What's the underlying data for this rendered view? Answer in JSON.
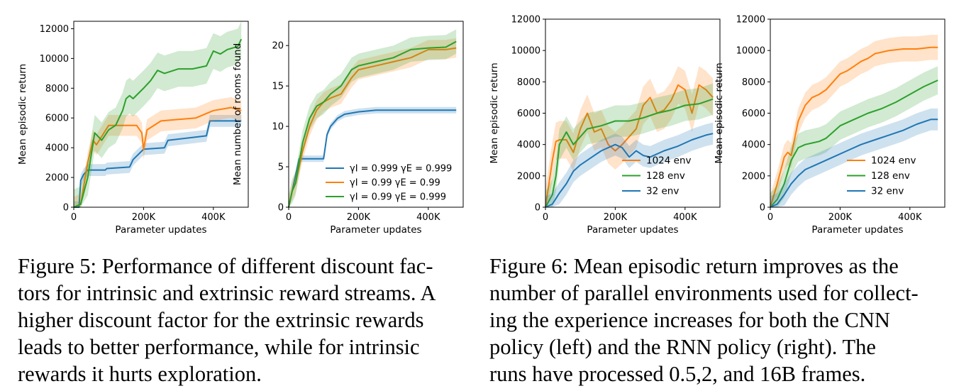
{
  "colors": {
    "blue": "#1f77b4",
    "orange": "#ff7f0e",
    "green": "#2ca02c"
  },
  "chart_data": [
    {
      "type": "line",
      "panel": "fig5-left",
      "xlabel": "Parameter updates",
      "ylabel": "Mean episodic return",
      "xlim": [
        0,
        500000
      ],
      "ylim": [
        0,
        12500
      ],
      "xticks": [
        0,
        200000,
        400000
      ],
      "xtick_labels": [
        "0",
        "200K",
        "400K"
      ],
      "yticks": [
        0,
        2000,
        4000,
        6000,
        8000,
        10000,
        12000
      ],
      "ytick_labels": [
        "0",
        "2000",
        "4000",
        "6000",
        "8000",
        "10000",
        "12000"
      ],
      "grid": false,
      "series": [
        {
          "color": "blue",
          "band": 400,
          "x": [
            0,
            15000,
            20000,
            28000,
            40000,
            90000,
            95000,
            160000,
            170000,
            200000,
            260000,
            270000,
            380000,
            390000,
            480000
          ],
          "y": [
            0,
            0,
            1800,
            2200,
            2500,
            2500,
            2600,
            2700,
            3200,
            3900,
            4000,
            4500,
            4800,
            5800,
            5800
          ]
        },
        {
          "color": "orange",
          "band": 700,
          "x": [
            0,
            20000,
            40000,
            55000,
            65000,
            100000,
            130000,
            180000,
            195000,
            200000,
            210000,
            250000,
            300000,
            350000,
            400000,
            450000,
            480000
          ],
          "y": [
            0,
            200,
            3000,
            4500,
            4200,
            5500,
            5500,
            5500,
            5000,
            3900,
            5200,
            5800,
            5900,
            6000,
            6500,
            6700,
            6500
          ]
        },
        {
          "color": "green",
          "band": 1200,
          "x": [
            0,
            20000,
            40000,
            50000,
            60000,
            80000,
            100000,
            120000,
            140000,
            150000,
            160000,
            170000,
            200000,
            220000,
            240000,
            260000,
            300000,
            340000,
            380000,
            400000,
            420000,
            440000,
            470000,
            480000
          ],
          "y": [
            0,
            200,
            2000,
            3500,
            5000,
            4500,
            5200,
            5500,
            6500,
            7300,
            7500,
            7300,
            8000,
            8500,
            9200,
            9000,
            9300,
            9300,
            9500,
            10500,
            10300,
            10600,
            10800,
            11300
          ]
        }
      ]
    },
    {
      "type": "line",
      "panel": "fig5-right",
      "xlabel": "Parameter updates",
      "ylabel": "Mean number of rooms found",
      "xlim": [
        0,
        500000
      ],
      "ylim": [
        0,
        23
      ],
      "xticks": [
        0,
        200000,
        400000
      ],
      "xtick_labels": [
        "0",
        "200K",
        "400K"
      ],
      "yticks": [
        0,
        5,
        10,
        15,
        20
      ],
      "ytick_labels": [
        "0",
        "5",
        "10",
        "15",
        "20"
      ],
      "grid": false,
      "legend": "lower-right",
      "series": [
        {
          "name": "γ_I = 0.999 γ_E = 0.999",
          "legend_label": "γI = 0.999 γE = 0.999",
          "color": "blue",
          "band": 0.4,
          "x": [
            0,
            10000,
            20000,
            30000,
            60000,
            100000,
            110000,
            120000,
            140000,
            160000,
            200000,
            250000,
            480000
          ],
          "y": [
            0,
            2,
            4,
            6,
            6,
            6,
            9,
            10,
            11,
            11.5,
            11.8,
            12,
            12
          ]
        },
        {
          "name": "γ_I = 0.99 γ_E = 0.99",
          "legend_label": "γI = 0.99 γE = 0.99",
          "color": "orange",
          "band": 1.2,
          "x": [
            0,
            10000,
            20000,
            40000,
            60000,
            80000,
            100000,
            120000,
            150000,
            180000,
            200000,
            250000,
            300000,
            350000,
            400000,
            450000,
            480000
          ],
          "y": [
            0,
            2,
            3,
            7,
            10,
            12,
            13,
            13.5,
            14,
            16,
            17,
            17.5,
            18,
            18.5,
            19.5,
            19.5,
            19.7
          ]
        },
        {
          "name": "γ_I = 0.99 γ_E = 0.999",
          "legend_label": "γI = 0.99 γE = 0.999",
          "color": "green",
          "band": 1.5,
          "x": [
            0,
            10000,
            20000,
            40000,
            60000,
            80000,
            100000,
            120000,
            150000,
            180000,
            200000,
            250000,
            300000,
            350000,
            400000,
            450000,
            480000
          ],
          "y": [
            0,
            2,
            3,
            8,
            11,
            12.5,
            13,
            14,
            15,
            17,
            17.5,
            18,
            18.5,
            19.5,
            19.7,
            19.8,
            20.5
          ]
        }
      ]
    },
    {
      "type": "line",
      "panel": "fig6-left",
      "xlabel": "Parameter updates",
      "ylabel": "Mean episodic return",
      "xlim": [
        0,
        500000
      ],
      "ylim": [
        0,
        12000
      ],
      "xticks": [
        0,
        200000,
        400000
      ],
      "xtick_labels": [
        "0",
        "200K",
        "400K"
      ],
      "yticks": [
        0,
        2000,
        4000,
        6000,
        8000,
        10000,
        12000
      ],
      "ytick_labels": [
        "0",
        "2000",
        "4000",
        "6000",
        "8000",
        "10000",
        "12000"
      ],
      "grid": false,
      "legend": "lower-right",
      "series": [
        {
          "name": "1024 env",
          "color": "orange",
          "band": 1200,
          "x": [
            0,
            10000,
            20000,
            30000,
            40000,
            60000,
            80000,
            100000,
            120000,
            140000,
            160000,
            180000,
            200000,
            220000,
            240000,
            260000,
            280000,
            300000,
            320000,
            340000,
            360000,
            380000,
            400000,
            420000,
            440000,
            460000,
            480000
          ],
          "y": [
            0,
            1500,
            3000,
            4200,
            4300,
            4300,
            3500,
            5000,
            6000,
            4800,
            5000,
            4000,
            3600,
            4000,
            4500,
            5000,
            6500,
            7000,
            6000,
            6200,
            6800,
            7800,
            7500,
            6000,
            7800,
            7500,
            7000
          ]
        },
        {
          "name": "128 env",
          "color": "green",
          "band": 1000,
          "x": [
            0,
            20000,
            30000,
            40000,
            60000,
            80000,
            100000,
            120000,
            160000,
            200000,
            240000,
            280000,
            320000,
            360000,
            400000,
            440000,
            480000
          ],
          "y": [
            0,
            800,
            2000,
            4000,
            4800,
            4000,
            4500,
            5000,
            5200,
            5500,
            5500,
            5700,
            6000,
            6200,
            6500,
            6600,
            6900
          ]
        },
        {
          "name": "32 env",
          "color": "blue",
          "band": 700,
          "x": [
            0,
            20000,
            40000,
            60000,
            80000,
            100000,
            120000,
            140000,
            160000,
            180000,
            200000,
            220000,
            240000,
            260000,
            280000,
            300000,
            340000,
            380000,
            420000,
            460000,
            480000
          ],
          "y": [
            0,
            200,
            900,
            1500,
            2300,
            2700,
            3000,
            3300,
            3600,
            3800,
            4000,
            3800,
            3200,
            3600,
            3300,
            3200,
            3600,
            3900,
            4300,
            4600,
            4700
          ]
        }
      ]
    },
    {
      "type": "line",
      "panel": "fig6-right",
      "xlabel": "Parameter updates",
      "ylabel": "Mean episodic return",
      "xlim": [
        0,
        500000
      ],
      "ylim": [
        0,
        12000
      ],
      "xticks": [
        0,
        200000,
        400000
      ],
      "xtick_labels": [
        "0",
        "200K",
        "400K"
      ],
      "yticks": [
        0,
        2000,
        4000,
        6000,
        8000,
        10000,
        12000
      ],
      "ytick_labels": [
        "0",
        "2000",
        "4000",
        "6000",
        "8000",
        "10000",
        "12000"
      ],
      "grid": false,
      "legend": "lower-right",
      "series": [
        {
          "name": "1024 env",
          "color": "orange",
          "band": 800,
          "x": [
            0,
            20000,
            40000,
            50000,
            60000,
            80000,
            100000,
            120000,
            140000,
            160000,
            180000,
            200000,
            220000,
            240000,
            260000,
            280000,
            300000,
            340000,
            380000,
            420000,
            460000,
            480000
          ],
          "y": [
            0,
            1500,
            3200,
            3500,
            3300,
            5500,
            6500,
            7000,
            7200,
            7500,
            8000,
            8500,
            8700,
            9000,
            9300,
            9500,
            9800,
            10000,
            10100,
            10100,
            10200,
            10200
          ]
        },
        {
          "name": "128 env",
          "color": "green",
          "band": 900,
          "x": [
            0,
            20000,
            40000,
            60000,
            80000,
            100000,
            120000,
            140000,
            160000,
            180000,
            200000,
            240000,
            280000,
            320000,
            360000,
            400000,
            440000,
            480000
          ],
          "y": [
            0,
            500,
            1500,
            3000,
            3800,
            4000,
            4100,
            4200,
            4400,
            4800,
            5200,
            5600,
            6000,
            6300,
            6700,
            7200,
            7700,
            8100
          ]
        },
        {
          "name": "32 env",
          "color": "blue",
          "band": 700,
          "x": [
            0,
            20000,
            40000,
            60000,
            80000,
            100000,
            140000,
            180000,
            220000,
            260000,
            300000,
            340000,
            380000,
            420000,
            460000,
            480000
          ],
          "y": [
            0,
            200,
            800,
            1500,
            2000,
            2400,
            2800,
            3200,
            3600,
            4000,
            4300,
            4600,
            4900,
            5300,
            5600,
            5600
          ]
        }
      ]
    }
  ],
  "captions": {
    "fig5": [
      "Figure 5: Performance of different discount fac-",
      "tors for intrinsic and extrinsic reward streams. A",
      "higher discount factor for the extrinsic rewards",
      "leads to better performance, while for intrinsic",
      "rewards it hurts exploration."
    ],
    "fig6": [
      "Figure 6: Mean episodic return improves as the",
      "number of parallel environments used for collect-",
      "ing the experience increases for both the CNN",
      "policy (left) and the RNN policy (right).  The",
      "runs have processed 0.5,2, and 16B frames."
    ]
  }
}
